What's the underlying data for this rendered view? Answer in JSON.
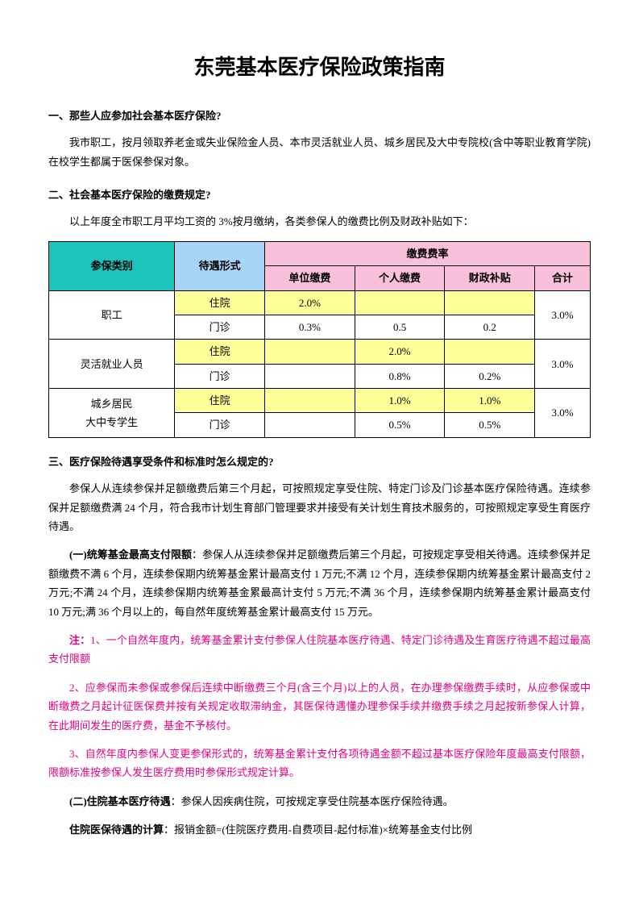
{
  "title": "东莞基本医疗保险政策指南",
  "s1": {
    "head": "一、那些人应参加社会基本医疗保险?",
    "p1": "我市职工，按月领取养老金或失业保险金人员、本市灵活就业人员、城乡居民及大中专院校(含中等职业教育学院)在校学生都属于医保参保对象。"
  },
  "s2": {
    "head": "二、社会基本医疗保险的缴费规定?",
    "p1": "以上年度全市职工月平均工资的 3%按月缴纳，各类参保人的缴费比例及财政补贴如下："
  },
  "table": {
    "h_category": "参保类别",
    "h_treatment": "待遇形式",
    "h_rate": "缴费费率",
    "h_unit": "单位缴费",
    "h_personal": "个人缴费",
    "h_subsidy": "财政补贴",
    "h_total": "合计",
    "r1": {
      "cat": "职工",
      "t1": "住院",
      "unit1": "2.0%",
      "p1": "",
      "s1": "",
      "t2": "门诊",
      "unit2": "0.3%",
      "p2": "0.5",
      "s2": "0.2",
      "total": "3.0%"
    },
    "r2": {
      "cat": "灵活就业人员",
      "t1": "住院",
      "unit1": "",
      "p1": "2.0%",
      "s1": "",
      "t2": "门诊",
      "unit2": "",
      "p2": "0.8%",
      "s2": "0.2%",
      "total": "3.0%"
    },
    "r3": {
      "cat1": "城乡居民",
      "cat2": "大中专学生",
      "t1": "住院",
      "p1": "1.0%",
      "s1": "1.0%",
      "t2": "门诊",
      "p2": "0.5%",
      "s2": "0.5%",
      "total": "3.0%"
    }
  },
  "s3": {
    "head": "三、医疗保险待遇享受条件和标准时怎么规定的?",
    "p1": "参保人从连续参保并足额缴费后第三个月起，可按照规定享受住院、特定门诊及门诊基本医疗保险待遇。连续参保并足额缴费满 24 个月，符合我市计划生育部门管理要求并接受有关计划生育技术服务的，可按照规定享受生育医疗待遇。",
    "p2a": "(一)统筹基金最高支付限额",
    "p2b": "：参保人从连续参保并足额缴费后第三个月起，可按规定享受相关待遇。连续参保并足额缴费不满 6 个月，连续参保期内统筹基金累计最高支付 1 万元;不满 12 个月，连续参保期内统筹基金累计最高支付 2 万元;不满 24 个月，连续参保期内统筹基金累最高计支付 5 万元;不满 36 个月，连续参保期内统筹基金累计最高支付 10 万元;满 36 个月以上的，每自然年度统筹基金累计最高支付 15 万元。",
    "note1a": "注：",
    "note1b": "1、一个自然年度内，统筹基金累计支付参保人住院基本医疗待遇、特定门诊待遇及生育医疗待遇不超过最高支付限额",
    "note2": "2、应参保而未参保或参保后连续中断缴费三个月(含三个月)以上的人员，在办理参保缴费手续时，从应参保或中断缴费之月起计征医保费并按有关规定收取滞纳金，其医保待遇懂办理参保手续并缴费手续之月起按新参保人计算，在此期间发生的医疗费，基金不予核付。",
    "note3": "3、自然年度内参保人变更参保形式的，统筹基金累计支付各项待遇金额不超过基本医疗保险年度最高支付限额，限额标准按参保人发生医疗费用时参保形式规定计算。",
    "p3a": "(二)住院基本医疗待遇",
    "p3b": "：参保人因疾病住院，可按规定享受住院基本医疗保险待遇。",
    "p4a": "住院医保待遇的计算",
    "p4b": "：报销金额=(住院医疗费用-自费项目-起付标准)×统筹基金支付比例"
  }
}
